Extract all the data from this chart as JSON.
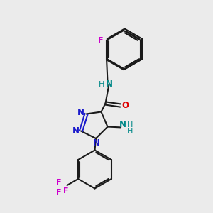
{
  "background_color": "#ebebeb",
  "bond_color": "#1a1a1a",
  "nitrogen_color": "#1a1acc",
  "oxygen_color": "#dd0000",
  "fluorine_color": "#cc00cc",
  "teal_color": "#008888",
  "line_width": 1.5,
  "figsize": [
    3.0,
    3.0
  ],
  "dpi": 100,
  "xlim": [
    0,
    10
  ],
  "ylim": [
    0,
    10
  ]
}
